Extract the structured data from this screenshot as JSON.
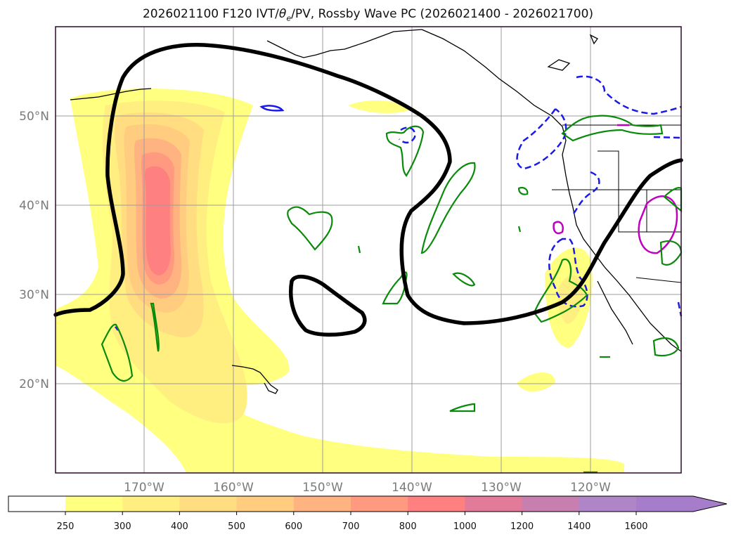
{
  "title": {
    "run": "2026021100",
    "forecast": "F120",
    "ivt": "IVT/",
    "theta": "θ",
    "theta_sub": "e",
    "pv": "/PV, Rossby Wave PC (2026021400 - 2026021700)"
  },
  "map": {
    "lat_labels": [
      "50°N",
      "40°N",
      "30°N",
      "20°N"
    ],
    "lon_labels": [
      "170°W",
      "160°W",
      "150°W",
      "140°W",
      "130°W",
      "120°W"
    ],
    "field": "Integrated vapor transport (IVT)",
    "contours": [
      "theta_e (green)",
      "PV (blue dashed / magenta)",
      "Rossby wave PC (black)"
    ]
  },
  "colorbar": {
    "levels": [
      "250",
      "300",
      "400",
      "500",
      "600",
      "700",
      "800",
      "1000",
      "1200",
      "1400",
      "1600"
    ],
    "colors": [
      "#ffff80",
      "#ffee80",
      "#ffdd80",
      "#ffcc80",
      "#ffb380",
      "#ff9a80",
      "#ff8080",
      "#e27a9a",
      "#c77fb0",
      "#ae85c6",
      "#a67dcb"
    ],
    "extend": "max"
  }
}
